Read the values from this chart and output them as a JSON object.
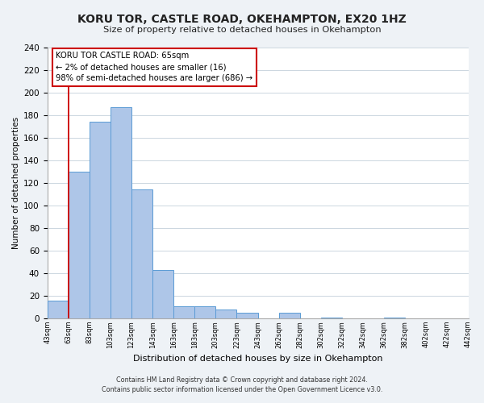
{
  "title": "KORU TOR, CASTLE ROAD, OKEHAMPTON, EX20 1HZ",
  "subtitle": "Size of property relative to detached houses in Okehampton",
  "xlabel": "Distribution of detached houses by size in Okehampton",
  "ylabel": "Number of detached properties",
  "bar_heights": [
    16,
    130,
    174,
    187,
    114,
    43,
    11,
    11,
    8,
    5,
    0,
    5,
    0,
    1,
    0,
    0,
    1,
    0,
    0,
    0
  ],
  "bar_labels": [
    "43sqm",
    "63sqm",
    "83sqm",
    "103sqm",
    "123sqm",
    "143sqm",
    "163sqm",
    "183sqm",
    "203sqm",
    "223sqm",
    "243sqm",
    "262sqm",
    "282sqm",
    "302sqm",
    "322sqm",
    "342sqm",
    "362sqm",
    "382sqm",
    "402sqm",
    "422sqm",
    "442sqm"
  ],
  "bar_color": "#aec6e8",
  "bar_edge_color": "#5b9bd5",
  "vline_x": 1.0,
  "vline_color": "#cc0000",
  "annotation_title": "KORU TOR CASTLE ROAD: 65sqm",
  "annotation_line1": "← 2% of detached houses are smaller (16)",
  "annotation_line2": "98% of semi-detached houses are larger (686) →",
  "annotation_box_facecolor": "#ffffff",
  "annotation_box_edgecolor": "#cc0000",
  "ylim": [
    0,
    240
  ],
  "yticks": [
    0,
    20,
    40,
    60,
    80,
    100,
    120,
    140,
    160,
    180,
    200,
    220,
    240
  ],
  "footnote1": "Contains HM Land Registry data © Crown copyright and database right 2024.",
  "footnote2": "Contains public sector information licensed under the Open Government Licence v3.0.",
  "fig_facecolor": "#eef2f6",
  "plot_facecolor": "#ffffff",
  "grid_color": "#ccd6e0"
}
